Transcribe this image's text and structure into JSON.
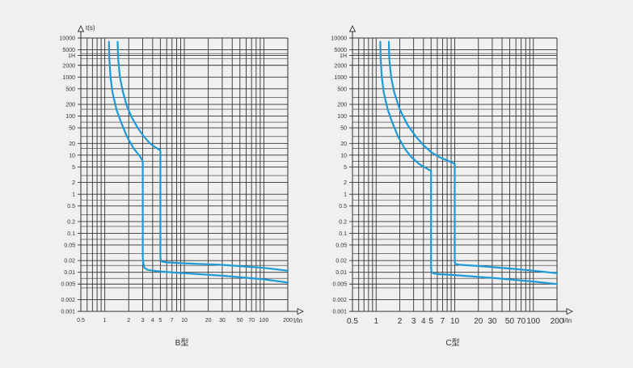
{
  "colors": {
    "background": "#f0f0f0",
    "grid": "#333333",
    "curve": "#1e9ad6",
    "text": "#333333"
  },
  "chart_data": [
    {
      "type": "line",
      "title": "B型",
      "xlabel": "I/In",
      "ylabel": "t(s)",
      "x_scale": "log",
      "y_scale": "log",
      "xlim": [
        0.5,
        200
      ],
      "ylim": [
        0.001,
        10000
      ],
      "grid": true,
      "x_ticks": [
        {
          "v": 0.5,
          "label": "0.5"
        },
        {
          "v": 1,
          "label": "1"
        },
        {
          "v": 2,
          "label": "2"
        },
        {
          "v": 3,
          "label": "3"
        },
        {
          "v": 4,
          "label": "4"
        },
        {
          "v": 5,
          "label": "5"
        },
        {
          "v": 7,
          "label": "7"
        },
        {
          "v": 10,
          "label": "10"
        },
        {
          "v": 20,
          "label": "20"
        },
        {
          "v": 30,
          "label": "30"
        },
        {
          "v": 50,
          "label": "50"
        },
        {
          "v": 70,
          "label": "70"
        },
        {
          "v": 100,
          "label": "100"
        },
        {
          "v": 200,
          "label": "200"
        }
      ],
      "y_ticks": [
        {
          "v": 10000,
          "label": "10000"
        },
        {
          "v": 5000,
          "label": "5000"
        },
        {
          "v": 3600,
          "label": "1H"
        },
        {
          "v": 2000,
          "label": "2000"
        },
        {
          "v": 1000,
          "label": "1000"
        },
        {
          "v": 500,
          "label": "500"
        },
        {
          "v": 200,
          "label": "200"
        },
        {
          "v": 100,
          "label": "100"
        },
        {
          "v": 50,
          "label": "50"
        },
        {
          "v": 20,
          "label": "20"
        },
        {
          "v": 10,
          "label": "10"
        },
        {
          "v": 5,
          "label": "5"
        },
        {
          "v": 2,
          "label": "2"
        },
        {
          "v": 1,
          "label": "1"
        },
        {
          "v": 0.5,
          "label": "0.5"
        },
        {
          "v": 0.2,
          "label": "0.2"
        },
        {
          "v": 0.1,
          "label": "0.1"
        },
        {
          "v": 0.05,
          "label": "0.05"
        },
        {
          "v": 0.02,
          "label": "0.02"
        },
        {
          "v": 0.01,
          "label": "0.01"
        },
        {
          "v": 0.005,
          "label": "0.005"
        },
        {
          "v": 0.002,
          "label": "0.002"
        },
        {
          "v": 0.001,
          "label": "0.001"
        }
      ],
      "series": [
        {
          "x": [
            1.13,
            1.14,
            1.18,
            1.25,
            1.4,
            1.6,
            1.9,
            2.3,
            2.7,
            2.9,
            3.0,
            3.0,
            3.0,
            3.05,
            3.15,
            3.5,
            5,
            10,
            30,
            100,
            200
          ],
          "y": [
            8000,
            3000,
            1000,
            400,
            150,
            70,
            30,
            15,
            10,
            8,
            7,
            1,
            0.025,
            0.017,
            0.013,
            0.0115,
            0.0105,
            0.0095,
            0.0082,
            0.0066,
            0.0055
          ]
        },
        {
          "x": [
            1.45,
            1.47,
            1.55,
            1.7,
            1.9,
            2.2,
            2.6,
            3.1,
            3.7,
            4.3,
            4.8,
            5.0,
            5.0,
            5.0,
            5.05,
            5.2,
            6,
            10,
            30,
            100,
            200
          ],
          "y": [
            8000,
            3000,
            1000,
            400,
            180,
            90,
            50,
            30,
            20,
            16,
            14,
            13,
            1,
            0.025,
            0.021,
            0.019,
            0.018,
            0.017,
            0.0155,
            0.013,
            0.011
          ]
        }
      ]
    },
    {
      "type": "line",
      "title": "C型",
      "xlabel": "I/In",
      "ylabel": "",
      "x_scale": "log",
      "y_scale": "log",
      "xlim": [
        0.5,
        200
      ],
      "ylim": [
        0.001,
        10000
      ],
      "grid": true,
      "x_ticks": [
        {
          "v": 0.5,
          "label": "0.5"
        },
        {
          "v": 1,
          "label": "1"
        },
        {
          "v": 2,
          "label": "2"
        },
        {
          "v": 3,
          "label": "3"
        },
        {
          "v": 4,
          "label": "4"
        },
        {
          "v": 5,
          "label": "5"
        },
        {
          "v": 7,
          "label": "7"
        },
        {
          "v": 10,
          "label": "10"
        },
        {
          "v": 20,
          "label": "20"
        },
        {
          "v": 30,
          "label": "30"
        },
        {
          "v": 50,
          "label": "50"
        },
        {
          "v": 70,
          "label": "70"
        },
        {
          "v": 100,
          "label": "100"
        },
        {
          "v": 200,
          "label": "200"
        }
      ],
      "y_ticks": [
        {
          "v": 10000,
          "label": "10000"
        },
        {
          "v": 5000,
          "label": "5000"
        },
        {
          "v": 3600,
          "label": "1H"
        },
        {
          "v": 2000,
          "label": "2000"
        },
        {
          "v": 1000,
          "label": "1000"
        },
        {
          "v": 500,
          "label": "500"
        },
        {
          "v": 200,
          "label": "200"
        },
        {
          "v": 100,
          "label": "100"
        },
        {
          "v": 50,
          "label": "50"
        },
        {
          "v": 20,
          "label": "20"
        },
        {
          "v": 10,
          "label": "10"
        },
        {
          "v": 5,
          "label": "5"
        },
        {
          "v": 2,
          "label": "2"
        },
        {
          "v": 1,
          "label": "1"
        },
        {
          "v": 0.5,
          "label": "0.5"
        },
        {
          "v": 0.2,
          "label": "0.2"
        },
        {
          "v": 0.1,
          "label": "0.1"
        },
        {
          "v": 0.05,
          "label": "0.05"
        },
        {
          "v": 0.02,
          "label": "0.02"
        },
        {
          "v": 0.01,
          "label": "0.01"
        },
        {
          "v": 0.005,
          "label": "0.005"
        },
        {
          "v": 0.002,
          "label": "0.002"
        },
        {
          "v": 0.001,
          "label": "0.001"
        }
      ],
      "series": [
        {
          "x": [
            1.13,
            1.14,
            1.18,
            1.25,
            1.4,
            1.6,
            1.9,
            2.3,
            2.8,
            3.5,
            4.2,
            4.7,
            5.0,
            5.0,
            5.0,
            5.05,
            5.3,
            6,
            10,
            30,
            100,
            200
          ],
          "y": [
            8000,
            3000,
            1000,
            400,
            150,
            70,
            30,
            15,
            9,
            6,
            4.8,
            4.2,
            4,
            1,
            0.013,
            0.0105,
            0.0095,
            0.009,
            0.0085,
            0.0072,
            0.0058,
            0.005
          ]
        },
        {
          "x": [
            1.45,
            1.47,
            1.55,
            1.7,
            2.0,
            2.5,
            3.2,
            4.0,
            5.0,
            6.3,
            7.8,
            9.2,
            10.0,
            10.0,
            10.0,
            10.1,
            10.6,
            12,
            20,
            50,
            100,
            200
          ],
          "y": [
            8000,
            3000,
            1000,
            400,
            150,
            60,
            30,
            18,
            12,
            9,
            7.5,
            6.5,
            6,
            1,
            0.02,
            0.0165,
            0.016,
            0.0155,
            0.0145,
            0.0125,
            0.011,
            0.0095
          ]
        }
      ]
    }
  ]
}
